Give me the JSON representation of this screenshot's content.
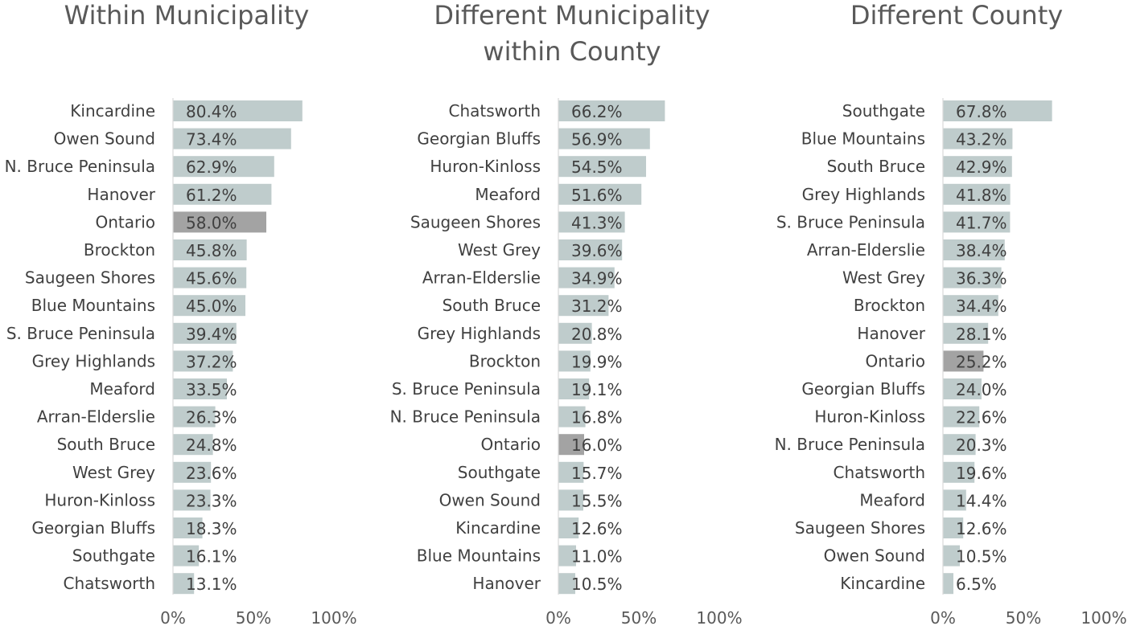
{
  "chart_data": [
    {
      "type": "bar",
      "orientation": "horizontal",
      "title": [
        "Within Municipality"
      ],
      "xlim": [
        0,
        100
      ],
      "xticks": [
        "0%",
        "50%",
        "100%"
      ],
      "value_suffix": "%",
      "bar_color": "#bfcccc",
      "highlight_color": "#a3a3a3",
      "highlight_category": "Ontario",
      "categories": [
        "Kincardine",
        "Owen Sound",
        "N. Bruce Peninsula",
        "Hanover",
        "Ontario",
        "Brockton",
        "Saugeen Shores",
        "Blue Mountains",
        "S. Bruce Peninsula",
        "Grey Highlands",
        "Meaford",
        "Arran-Elderslie",
        "South Bruce",
        "West Grey",
        "Huron-Kinloss",
        "Georgian Bluffs",
        "Southgate",
        "Chatsworth"
      ],
      "values": [
        80.4,
        73.4,
        62.9,
        61.2,
        58.0,
        45.8,
        45.6,
        45.0,
        39.4,
        37.2,
        33.5,
        26.3,
        24.8,
        23.6,
        23.3,
        18.3,
        16.1,
        13.1
      ]
    },
    {
      "type": "bar",
      "orientation": "horizontal",
      "title": [
        "Different Municipality",
        "within County"
      ],
      "xlim": [
        0,
        100
      ],
      "xticks": [
        "0%",
        "50%",
        "100%"
      ],
      "value_suffix": "%",
      "bar_color": "#bfcccc",
      "highlight_color": "#a3a3a3",
      "highlight_category": "Ontario",
      "categories": [
        "Chatsworth",
        "Georgian Bluffs",
        "Huron-Kinloss",
        "Meaford",
        "Saugeen Shores",
        "West Grey",
        "Arran-Elderslie",
        "South Bruce",
        "Grey Highlands",
        "Brockton",
        "S. Bruce Peninsula",
        "N. Bruce Peninsula",
        "Ontario",
        "Southgate",
        "Owen Sound",
        "Kincardine",
        "Blue Mountains",
        "Hanover"
      ],
      "values": [
        66.2,
        56.9,
        54.5,
        51.6,
        41.3,
        39.6,
        34.9,
        31.2,
        20.8,
        19.9,
        19.1,
        16.8,
        16.0,
        15.7,
        15.5,
        12.6,
        11.0,
        10.5
      ]
    },
    {
      "type": "bar",
      "orientation": "horizontal",
      "title": [
        "Different County"
      ],
      "xlim": [
        0,
        100
      ],
      "xticks": [
        "0%",
        "50%",
        "100%"
      ],
      "value_suffix": "%",
      "bar_color": "#bfcccc",
      "highlight_color": "#a3a3a3",
      "highlight_category": "Ontario",
      "categories": [
        "Southgate",
        "Blue Mountains",
        "South Bruce",
        "Grey Highlands",
        "S. Bruce Peninsula",
        "Arran-Elderslie",
        "West Grey",
        "Brockton",
        "Hanover",
        "Ontario",
        "Georgian Bluffs",
        "Huron-Kinloss",
        "N. Bruce Peninsula",
        "Chatsworth",
        "Meaford",
        "Saugeen Shores",
        "Owen Sound",
        "Kincardine"
      ],
      "values": [
        67.8,
        43.2,
        42.9,
        41.8,
        41.7,
        38.4,
        36.3,
        34.4,
        28.1,
        25.2,
        24.0,
        22.6,
        20.3,
        19.6,
        14.4,
        12.6,
        10.5,
        6.5
      ]
    }
  ]
}
